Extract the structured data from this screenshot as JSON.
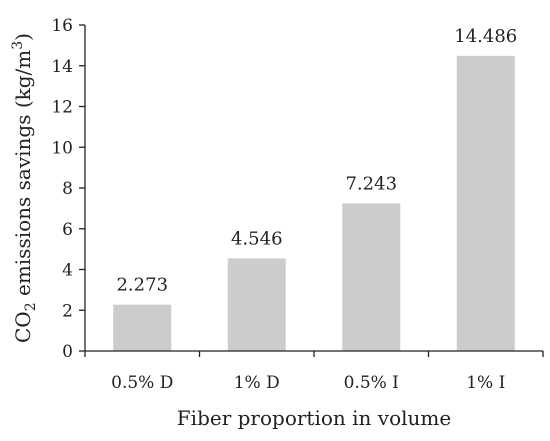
{
  "chart_data": {
    "type": "bar",
    "categories": [
      "0.5% D",
      "1% D",
      "0.5% I",
      "1% I"
    ],
    "values": [
      2.273,
      4.546,
      7.243,
      14.486
    ],
    "data_labels": [
      "2.273",
      "4.546",
      "7.243",
      "14.486"
    ],
    "xlabel": "Fiber proportion in volume",
    "ylabel": {
      "prefix": "CO",
      "subscript": "2",
      "middle": " emissions savings (kg/m",
      "superscript": "3",
      "suffix": ")"
    },
    "ylim": [
      0,
      16
    ],
    "yticks": [
      0,
      2,
      4,
      6,
      8,
      10,
      12,
      14,
      16
    ],
    "grid": false,
    "legend": "none",
    "bar_color": "#cccccc",
    "axis_color": "#222222"
  }
}
